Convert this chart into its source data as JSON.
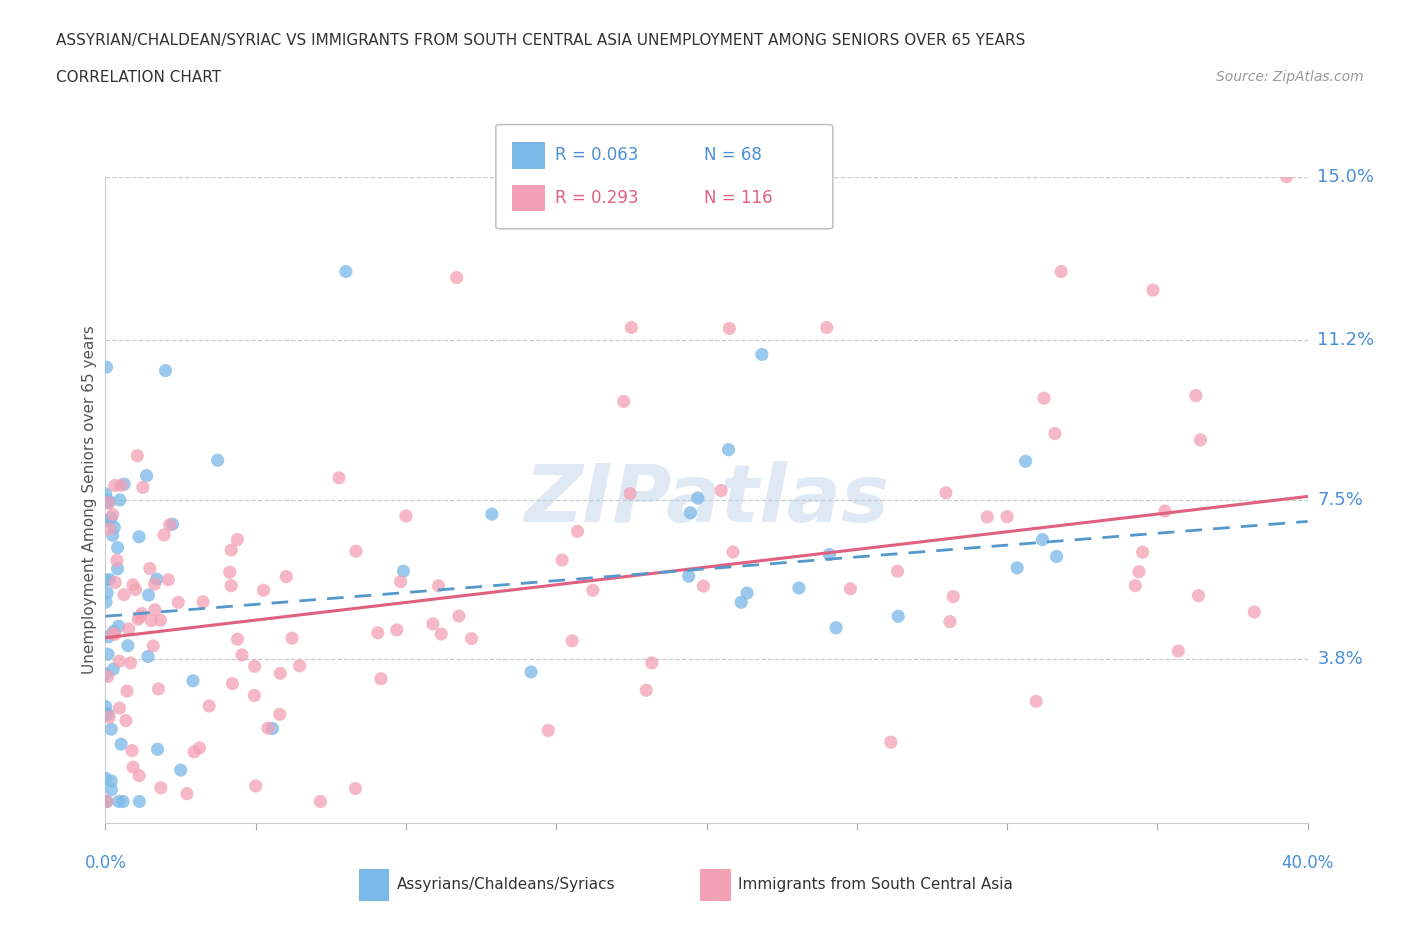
{
  "title_line1": "ASSYRIAN/CHALDEAN/SYRIAC VS IMMIGRANTS FROM SOUTH CENTRAL ASIA UNEMPLOYMENT AMONG SENIORS OVER 65 YEARS",
  "title_line2": "CORRELATION CHART",
  "source_text": "Source: ZipAtlas.com",
  "ylabel_label": "Unemployment Among Seniors over 65 years",
  "legend_label1": "Assyrians/Chaldeans/Syriacs",
  "legend_label2": "Immigrants from South Central Asia",
  "legend_r1": "R = 0.063",
  "legend_n1": "N = 68",
  "legend_r2": "R = 0.293",
  "legend_n2": "N = 116",
  "color_blue": "#7ab8e8",
  "color_pink": "#f4a0b5",
  "color_trendline_blue": "#5599cc",
  "color_trendline_pink": "#e06080",
  "color_label_blue": "#4a90d9",
  "color_label_pink": "#e06080",
  "watermark_text": "ZIPatlas",
  "xlim": [
    0.0,
    0.4
  ],
  "ylim": [
    0.0,
    0.15
  ],
  "ytick_vals": [
    0.038,
    0.075,
    0.112,
    0.15
  ],
  "ytick_labels": [
    "3.8%",
    "7.5%",
    "11.2%",
    "15.0%"
  ],
  "blue_intercept": 0.048,
  "blue_slope": 0.055,
  "pink_intercept": 0.043,
  "pink_slope": 0.082
}
